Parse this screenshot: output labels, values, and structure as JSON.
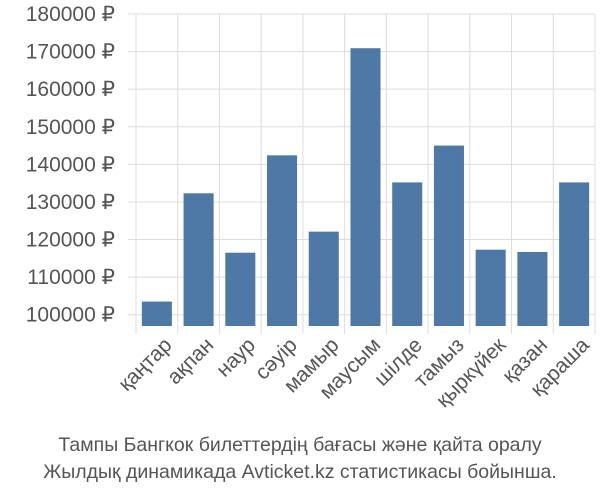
{
  "chart_data": {
    "type": "bar",
    "categories": [
      "қаңтар",
      "ақпан",
      "наур",
      "сәуір",
      "мамыр",
      "маусым",
      "шілде",
      "тамыз",
      "қыркүйек",
      "қазан",
      "қараша"
    ],
    "values": [
      103500,
      132300,
      116500,
      142400,
      122100,
      170900,
      135200,
      145000,
      117300,
      116700,
      135200
    ],
    "ylim": [
      97000,
      180000
    ],
    "yticks": [
      100000,
      110000,
      120000,
      130000,
      140000,
      150000,
      160000,
      170000,
      180000
    ],
    "y_tick_suffix": " ₽",
    "grid": true,
    "bar_color": "#4e79a7",
    "grid_color": "#dddddd",
    "caption_lines": [
      "Тампы Бангкок билеттердің бағасы және қайта оралу",
      "Жылдық динамикада Avticket.kz статистикасы бойынша."
    ]
  }
}
